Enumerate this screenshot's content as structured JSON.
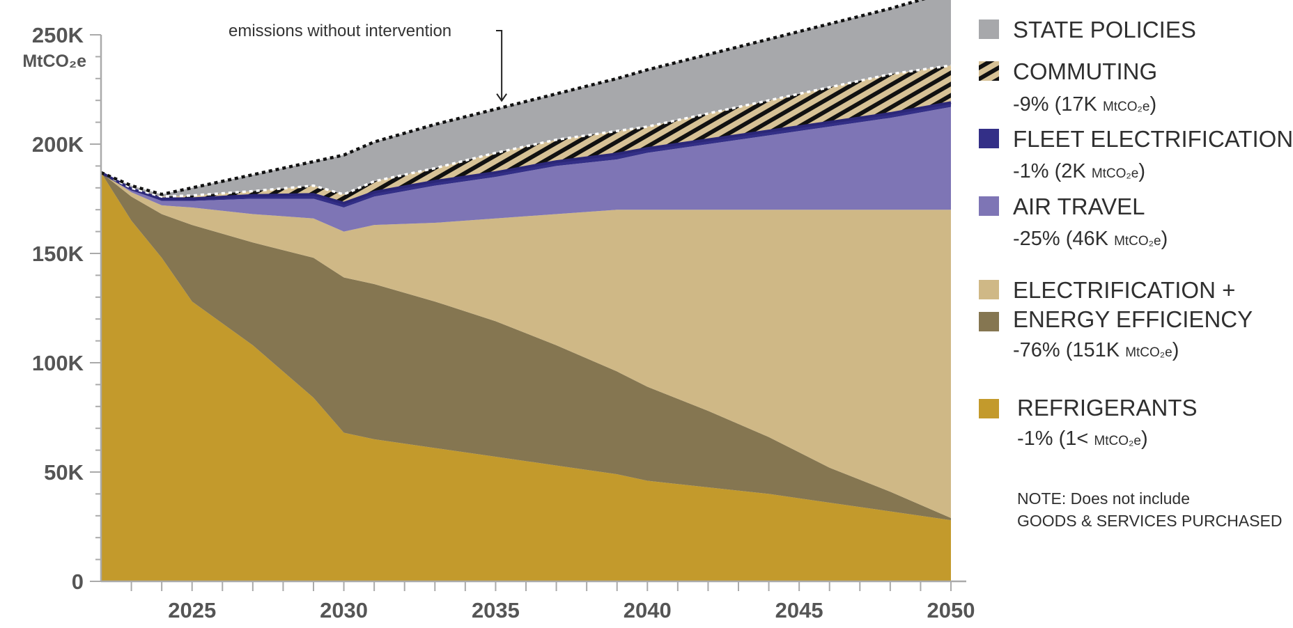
{
  "chart_data": {
    "type": "area",
    "ylabel": "MtCO₂e",
    "ylim": [
      0,
      250000
    ],
    "xlim": [
      2022,
      2050
    ],
    "y_ticks": [
      {
        "value": 0,
        "label": "0"
      },
      {
        "value": 50000,
        "label": "50K"
      },
      {
        "value": 100000,
        "label": "100K"
      },
      {
        "value": 150000,
        "label": "150K"
      },
      {
        "value": 200000,
        "label": "200K"
      },
      {
        "value": 250000,
        "label": "250K"
      }
    ],
    "x_ticks": [
      {
        "value": 2025,
        "label": "2025"
      },
      {
        "value": 2030,
        "label": "2030"
      },
      {
        "value": 2035,
        "label": "2035"
      },
      {
        "value": 2040,
        "label": "2040"
      },
      {
        "value": 2045,
        "label": "2045"
      },
      {
        "value": 2050,
        "label": "2050"
      }
    ],
    "annotation": "emissions without intervention",
    "x": [
      2022,
      2023,
      2024,
      2025,
      2027,
      2029,
      2030,
      2031,
      2033,
      2035,
      2037,
      2039,
      2040,
      2042,
      2044,
      2046,
      2048,
      2050
    ],
    "series": [
      {
        "name": "REFRIGERANTS",
        "key": "refrigerants",
        "color": "#c39a2c",
        "top": [
          187000,
          165000,
          148000,
          128000,
          108000,
          84000,
          68000,
          65000,
          61000,
          57000,
          53000,
          49000,
          46000,
          43000,
          40000,
          36000,
          32000,
          28000
        ]
      },
      {
        "name": "ELECTRIFICATION + ENERGY EFFICIENCY",
        "key": "energy",
        "color": "#857651",
        "top": [
          187000,
          176000,
          168000,
          163000,
          155000,
          148000,
          139000,
          136000,
          128000,
          119000,
          108000,
          96000,
          89000,
          78000,
          66000,
          52000,
          41000,
          29000
        ]
      },
      {
        "name": "ELECTRIFICATION + ENERGY EFFICIENCY",
        "key": "electrification",
        "color": "#cfb886",
        "top": [
          187000,
          178000,
          172000,
          171000,
          168000,
          166000,
          160000,
          163000,
          164000,
          166000,
          168000,
          170000,
          170000,
          170000,
          170000,
          170000,
          170000,
          170000
        ]
      },
      {
        "name": "AIR TRAVEL",
        "key": "air",
        "color": "#7e75b5",
        "top": [
          187000,
          179000,
          174000,
          174000,
          175000,
          175000,
          171000,
          176000,
          181000,
          185000,
          190000,
          193000,
          196000,
          200000,
          204000,
          208000,
          212000,
          217000
        ]
      },
      {
        "name": "FLEET ELECTRIFICATION",
        "key": "fleet",
        "color": "#332f87",
        "top": [
          187000,
          179500,
          175000,
          175000,
          176500,
          177000,
          173000,
          178000,
          183000,
          187000,
          192000,
          195500,
          198000,
          202000,
          206000,
          210000,
          214000,
          219000
        ]
      },
      {
        "name": "COMMUTING",
        "key": "commuting",
        "color": "#d7c296",
        "top": [
          187000,
          180000,
          176000,
          176500,
          178500,
          181000,
          177000,
          183000,
          189000,
          196000,
          202000,
          206000,
          208000,
          214000,
          220000,
          226000,
          232000,
          236000
        ]
      },
      {
        "name": "STATE POLICIES",
        "key": "state",
        "color": "#a7a8ab",
        "top": [
          187000,
          181000,
          177000,
          180000,
          186000,
          192000,
          195000,
          201000,
          209000,
          216000,
          223000,
          230000,
          234000,
          241000,
          248000,
          255000,
          262000,
          270000
        ]
      }
    ],
    "legend": [
      {
        "key": "state",
        "color": "#a7a8ab",
        "pattern": false,
        "lines": [
          "STATE POLICIES"
        ],
        "value": "",
        "unit": ""
      },
      {
        "key": "commuting",
        "color": "#d7c296",
        "pattern": true,
        "lines": [
          "COMMUTING"
        ],
        "value": "-9% (17K",
        "unit": "MtCO₂e"
      },
      {
        "key": "fleet",
        "color": "#332f87",
        "pattern": false,
        "lines": [
          "FLEET ELECTRIFICATION"
        ],
        "value": "-1% (2K",
        "unit": "MtCO₂e"
      },
      {
        "key": "air",
        "color": "#7e75b5",
        "pattern": false,
        "lines": [
          "AIR TRAVEL"
        ],
        "value": "-25% (46K",
        "unit": "MtCO₂e"
      },
      {
        "key": "electrification",
        "color": "#cfb886",
        "pattern": false,
        "lines": [
          "ELECTRIFICATION +"
        ],
        "value": "",
        "unit": ""
      },
      {
        "key": "energy",
        "color": "#857651",
        "pattern": false,
        "lines": [
          "ENERGY EFFICIENCY"
        ],
        "value": "-76% (151K",
        "unit": "MtCO₂e"
      },
      {
        "key": "refrigerants",
        "color": "#c39a2c",
        "pattern": false,
        "lines": [
          "REFRIGERANTS"
        ],
        "value": "-1% (1<",
        "unit": "MtCO₂e"
      }
    ],
    "note_lines": [
      "NOTE: Does not include",
      "GOODS & SERVICES PURCHASED"
    ]
  }
}
